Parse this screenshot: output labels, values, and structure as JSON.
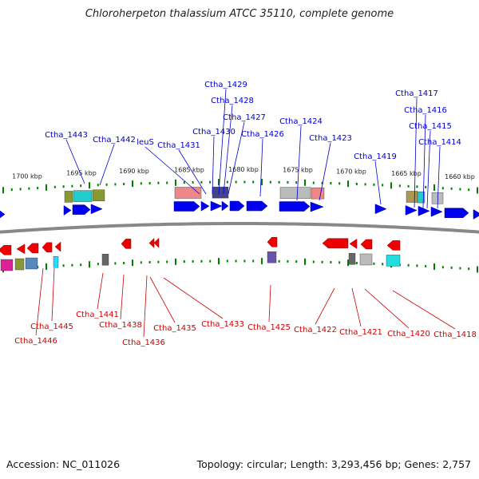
{
  "title": "Chloroherpeton thalassium ATCC 35110, complete genome",
  "footer": {
    "accession": "Accession: NC_011026",
    "topology": "Topology: circular; Length: 3,293,456 bp; Genes: 2,757"
  },
  "colors": {
    "forward_strand": "#0000ee",
    "reverse_strand": "#ee0000",
    "backbone": "#888888",
    "tick": "#008000",
    "forward_label": "#0000cc",
    "reverse_label": "#cc0000"
  },
  "scale_labels": [
    "1700 kbp",
    "1695 kbp",
    "1690 kbp",
    "1685 kbp",
    "1680 kbp",
    "1675 kbp",
    "1670 kbp",
    "1665 kbp",
    "1660 kbp"
  ],
  "forward_labels": [
    "Ctha_1443",
    "Ctha_1442",
    "leuS",
    "Ctha_1431",
    "Ctha_1430",
    "Ctha_1429",
    "Ctha_1428",
    "Ctha_1427",
    "Ctha_1426",
    "Ctha_1424",
    "Ctha_1423",
    "Ctha_1419",
    "Ctha_1417",
    "Ctha_1416",
    "Ctha_1415",
    "Ctha_1414"
  ],
  "reverse_labels": [
    "Ctha_1445",
    "Ctha_1446",
    "Ctha_1441",
    "Ctha_1438",
    "Ctha_1436",
    "Ctha_1435",
    "Ctha_1433",
    "Ctha_1425",
    "Ctha_1422",
    "Ctha_1421",
    "Ctha_1420",
    "Ctha_1418"
  ]
}
